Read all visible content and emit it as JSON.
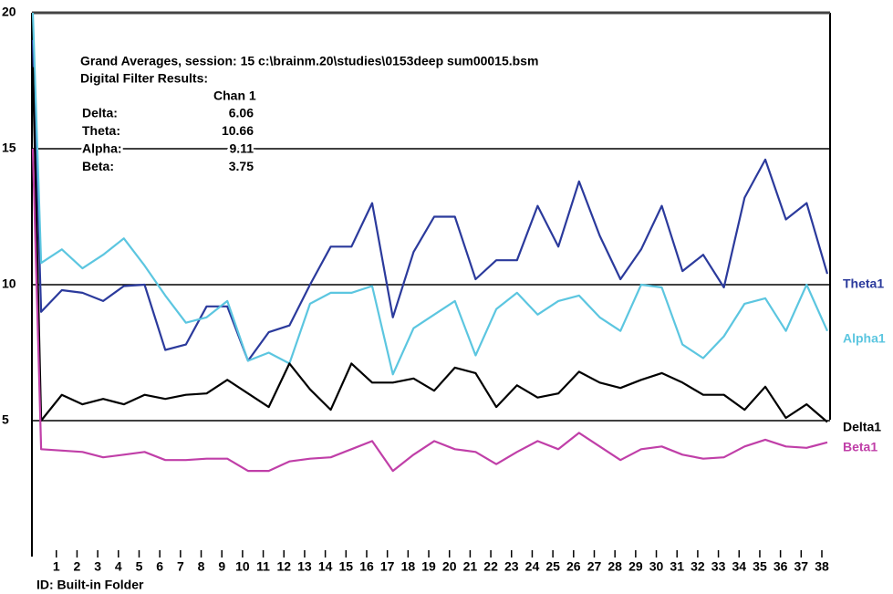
{
  "chart_data": {
    "type": "line",
    "title": "Grand Averages, session: 15 c:\\brainm.20\\studies\\0153deep sum00015.bsm",
    "subtitle": "Digital Filter Results:",
    "summary": {
      "column": "Chan 1",
      "rows": [
        {
          "label": "Delta:",
          "value": 6.06
        },
        {
          "label": "Theta:",
          "value": 10.66
        },
        {
          "label": "Alpha:",
          "value": 9.11
        },
        {
          "label": "Beta:",
          "value": 3.75
        }
      ]
    },
    "footer": "ID: Built-in Folder",
    "x": [
      -0.4,
      0,
      1,
      2,
      3,
      4,
      5,
      6,
      7,
      8,
      9,
      10,
      11,
      12,
      13,
      14,
      15,
      16,
      17,
      18,
      19,
      20,
      21,
      22,
      23,
      24,
      25,
      26,
      27,
      28,
      29,
      30,
      31,
      32,
      33,
      34,
      35,
      36,
      37,
      38
    ],
    "xlim": [
      -0.4,
      38
    ],
    "xticks": [
      1,
      2,
      3,
      4,
      5,
      6,
      7,
      8,
      9,
      10,
      11,
      12,
      13,
      14,
      15,
      16,
      17,
      18,
      19,
      20,
      21,
      22,
      23,
      24,
      25,
      26,
      27,
      28,
      29,
      30,
      31,
      32,
      33,
      34,
      35,
      36,
      37,
      38
    ],
    "ylim": [
      0,
      20
    ],
    "yticks": [
      5,
      10,
      15,
      20
    ],
    "grid": true,
    "series": [
      {
        "name": "Theta1",
        "color": "#2b3a9c",
        "values": [
          19,
          9.0,
          9.8,
          9.7,
          9.4,
          9.95,
          10.0,
          7.6,
          7.8,
          9.2,
          9.2,
          7.2,
          8.25,
          8.5,
          10.0,
          11.4,
          11.4,
          13.0,
          8.8,
          11.2,
          12.5,
          12.5,
          10.2,
          10.9,
          10.9,
          12.9,
          11.4,
          13.8,
          11.8,
          10.2,
          11.3,
          12.9,
          10.5,
          11.1,
          9.9,
          13.2,
          14.6,
          12.4,
          13.0,
          10.4
        ]
      },
      {
        "name": "Alpha1",
        "color": "#5cc6e0",
        "values": [
          20,
          10.8,
          11.3,
          10.6,
          11.1,
          11.7,
          10.7,
          9.6,
          8.6,
          8.8,
          9.4,
          7.2,
          7.5,
          7.1,
          9.3,
          9.7,
          9.7,
          9.95,
          6.7,
          8.4,
          8.9,
          9.4,
          7.4,
          9.1,
          9.7,
          8.9,
          9.4,
          9.6,
          8.8,
          8.3,
          10.0,
          9.9,
          7.8,
          7.3,
          8.1,
          9.3,
          9.5,
          8.3,
          10.0,
          8.3
        ]
      },
      {
        "name": "Delta1",
        "color": "#000000",
        "values": [
          18,
          5.0,
          5.95,
          5.6,
          5.8,
          5.6,
          5.95,
          5.8,
          5.95,
          6.0,
          6.5,
          6.0,
          5.5,
          7.1,
          6.15,
          5.4,
          7.1,
          6.4,
          6.4,
          6.55,
          6.1,
          6.95,
          6.75,
          5.5,
          6.3,
          5.85,
          6.0,
          6.8,
          6.4,
          6.2,
          6.5,
          6.75,
          6.4,
          5.95,
          5.95,
          5.4,
          6.25,
          5.1,
          5.6,
          4.95
        ]
      },
      {
        "name": "Beta1",
        "color": "#c03fa8",
        "values": [
          15,
          3.95,
          3.9,
          3.85,
          3.65,
          3.75,
          3.85,
          3.55,
          3.55,
          3.6,
          3.6,
          3.15,
          3.15,
          3.5,
          3.6,
          3.65,
          3.95,
          4.25,
          3.15,
          3.75,
          4.25,
          3.95,
          3.85,
          3.4,
          3.85,
          4.25,
          3.95,
          4.55,
          4.05,
          3.55,
          3.95,
          4.05,
          3.75,
          3.6,
          3.65,
          4.05,
          4.3,
          4.05,
          4.0,
          4.2
        ]
      }
    ]
  }
}
